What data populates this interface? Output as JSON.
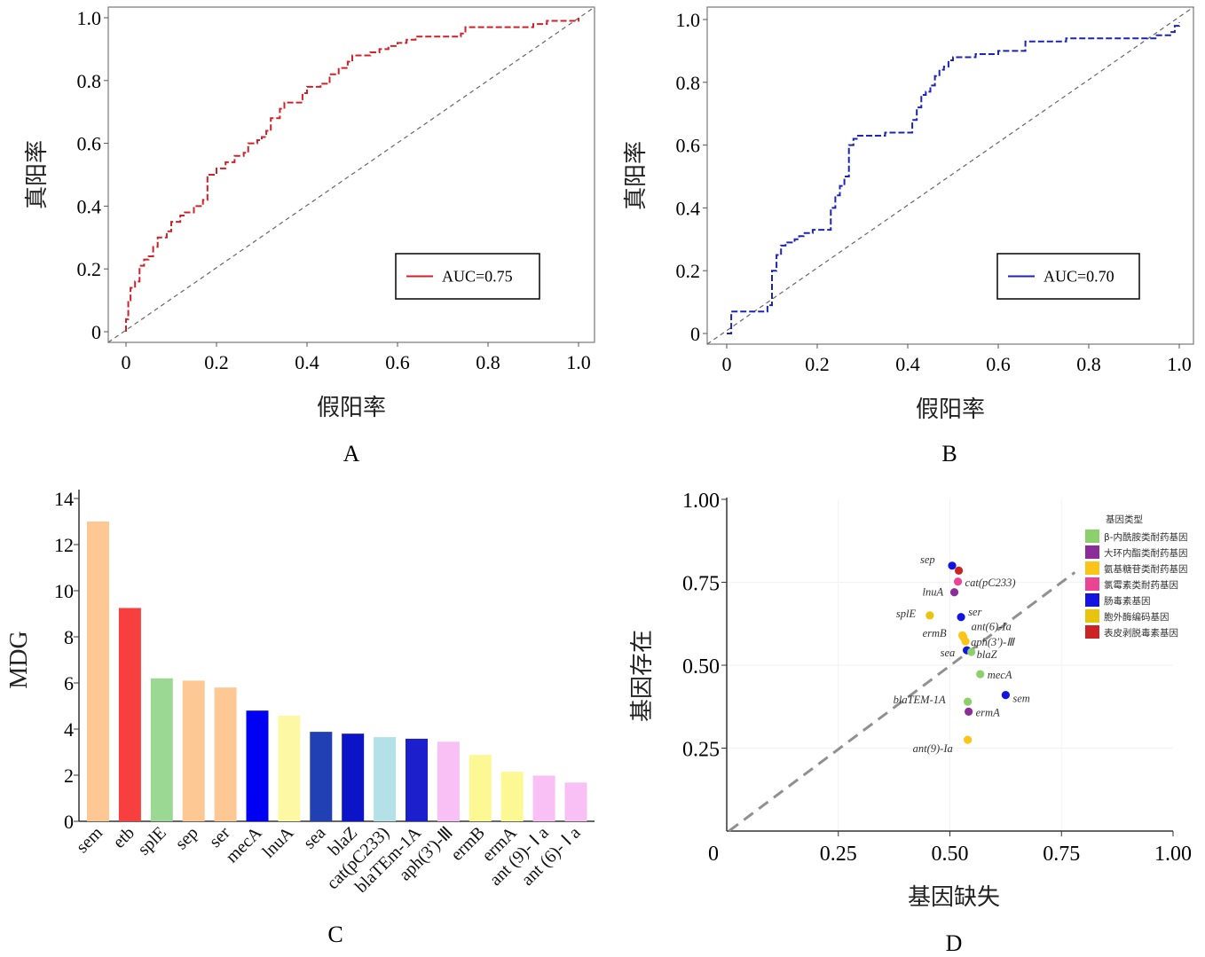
{
  "chart_data": [
    {
      "panel": "A",
      "type": "line",
      "xlabel": "假阳率",
      "ylabel": "真阳率",
      "xlim": [
        0,
        1
      ],
      "ylim": [
        0,
        1
      ],
      "xticks": [
        "0",
        "0.2",
        "0.4",
        "0.6",
        "0.8",
        "1.0"
      ],
      "yticks": [
        "0",
        "0.2",
        "0.4",
        "0.6",
        "0.8",
        "1.0"
      ],
      "legend": "AUC=0.75",
      "legend_position": "bottom-right",
      "color": "#d0202a",
      "reference_line": "diagonal",
      "x": [
        0,
        0,
        0.005,
        0.01,
        0.02,
        0.03,
        0.04,
        0.05,
        0.06,
        0.07,
        0.09,
        0.1,
        0.12,
        0.13,
        0.15,
        0.17,
        0.18,
        0.2,
        0.22,
        0.24,
        0.26,
        0.27,
        0.29,
        0.3,
        0.31,
        0.32,
        0.34,
        0.35,
        0.37,
        0.39,
        0.4,
        0.42,
        0.43,
        0.45,
        0.47,
        0.49,
        0.5,
        0.52,
        0.54,
        0.56,
        0.58,
        0.6,
        0.62,
        0.64,
        0.66,
        0.68,
        0.7,
        0.72,
        0.74,
        0.75,
        0.8,
        0.85,
        0.9,
        0.93,
        0.95,
        1.0
      ],
      "y": [
        0,
        0.04,
        0.1,
        0.14,
        0.16,
        0.21,
        0.23,
        0.24,
        0.27,
        0.3,
        0.32,
        0.35,
        0.37,
        0.38,
        0.4,
        0.42,
        0.5,
        0.52,
        0.54,
        0.56,
        0.57,
        0.6,
        0.61,
        0.62,
        0.64,
        0.68,
        0.71,
        0.73,
        0.73,
        0.76,
        0.78,
        0.78,
        0.79,
        0.82,
        0.84,
        0.86,
        0.88,
        0.88,
        0.89,
        0.9,
        0.91,
        0.92,
        0.93,
        0.94,
        0.94,
        0.94,
        0.94,
        0.94,
        0.95,
        0.97,
        0.97,
        0.97,
        0.98,
        0.99,
        0.99,
        1.0
      ]
    },
    {
      "panel": "B",
      "type": "line",
      "xlabel": "假阳率",
      "ylabel": "真阳率",
      "xlim": [
        0,
        1
      ],
      "ylim": [
        0,
        1
      ],
      "xticks": [
        "0",
        "0.2",
        "0.4",
        "0.6",
        "0.8",
        "1.0"
      ],
      "yticks": [
        "0",
        "0.2",
        "0.4",
        "0.6",
        "0.8",
        "1.0"
      ],
      "legend": "AUC=0.70",
      "legend_position": "bottom-right",
      "color": "#1c24b4",
      "reference_line": "diagonal",
      "x": [
        0,
        0.01,
        0.01,
        0.08,
        0.09,
        0.09,
        0.1,
        0.11,
        0.12,
        0.13,
        0.15,
        0.16,
        0.17,
        0.18,
        0.19,
        0.2,
        0.22,
        0.23,
        0.24,
        0.25,
        0.26,
        0.27,
        0.28,
        0.29,
        0.3,
        0.35,
        0.38,
        0.4,
        0.41,
        0.42,
        0.43,
        0.44,
        0.45,
        0.46,
        0.47,
        0.48,
        0.49,
        0.5,
        0.51,
        0.55,
        0.6,
        0.65,
        0.66,
        0.68,
        0.75,
        0.8,
        0.9,
        0.95,
        0.98,
        0.99,
        1.0
      ],
      "y": [
        0,
        0.04,
        0.07,
        0.07,
        0.07,
        0.09,
        0.2,
        0.25,
        0.28,
        0.29,
        0.3,
        0.31,
        0.32,
        0.32,
        0.33,
        0.33,
        0.33,
        0.4,
        0.44,
        0.47,
        0.5,
        0.6,
        0.62,
        0.63,
        0.63,
        0.64,
        0.64,
        0.64,
        0.68,
        0.72,
        0.76,
        0.77,
        0.79,
        0.82,
        0.84,
        0.85,
        0.87,
        0.88,
        0.88,
        0.89,
        0.9,
        0.9,
        0.93,
        0.93,
        0.94,
        0.94,
        0.94,
        0.95,
        0.96,
        0.98,
        0.99
      ]
    },
    {
      "panel": "C",
      "type": "bar",
      "ylabel": "MDG",
      "ylim": [
        0,
        14
      ],
      "yticks": [
        "0",
        "2",
        "4",
        "6",
        "8",
        "10",
        "12",
        "14"
      ],
      "categories": [
        "sem",
        "etb",
        "splE",
        "sep",
        "ser",
        "mecA",
        "lnuA",
        "sea",
        "blaZ",
        "cat(pC233)",
        "blaTEm-1A",
        "aph(3')-Ⅲ",
        "ermB",
        "ermA",
        "ant (9)- Ⅰ a",
        "ant (6)- Ⅰ a"
      ],
      "values": [
        13.0,
        9.25,
        6.2,
        6.1,
        5.8,
        4.8,
        4.58,
        3.88,
        3.8,
        3.65,
        3.58,
        3.45,
        2.88,
        2.15,
        1.98,
        1.68
      ],
      "colors": [
        "#fdc894",
        "#f83f3f",
        "#9bd894",
        "#fdc894",
        "#fdc894",
        "#0000f2",
        "#fcf8a4",
        "#2040b4",
        "#0c14c8",
        "#b4e0e8",
        "#1c20cc",
        "#f8c0f4",
        "#fcf894",
        "#fcf894",
        "#f8c0f4",
        "#f8c0f4"
      ]
    },
    {
      "panel": "D",
      "type": "scatter",
      "xlabel": "基因缺失",
      "ylabel": "基因存在",
      "xlim": [
        0,
        1
      ],
      "ylim": [
        0,
        1
      ],
      "xticks": [
        "0",
        "0.25",
        "0.50",
        "0.75",
        "1.00"
      ],
      "yticks": [
        "0.25",
        "0.50",
        "0.75",
        "1.00"
      ],
      "reference_line": "diagonal-dashed",
      "legend_title": "基因类型",
      "legend_position": "top-right",
      "legend": [
        {
          "label": "β-内酰胺类耐药基因",
          "color": "#8cd06c"
        },
        {
          "label": "大环内酯类耐药基因",
          "color": "#8c2c98"
        },
        {
          "label": "氨基糖苷类耐药基因",
          "color": "#fcc418"
        },
        {
          "label": "氯霉素类耐药基因",
          "color": "#ec4494"
        },
        {
          "label": "肠毒素基因",
          "color": "#1414e0"
        },
        {
          "label": "胞外酶编码基因",
          "color": "#e8c40c"
        },
        {
          "label": "表皮剥脱毒素基因",
          "color": "#cc2424"
        }
      ],
      "points": [
        {
          "label": "sep",
          "x": 0.505,
          "y": 0.8,
          "color": "#1414e0"
        },
        {
          "label": "",
          "x": 0.52,
          "y": 0.785,
          "color": "#cc2424"
        },
        {
          "label": "cat(pC233)",
          "x": 0.518,
          "y": 0.752,
          "color": "#ec4494"
        },
        {
          "label": "lnuA",
          "x": 0.51,
          "y": 0.72,
          "color": "#8c2c98"
        },
        {
          "label": "splE",
          "x": 0.455,
          "y": 0.65,
          "color": "#e8c40c"
        },
        {
          "label": "ser",
          "x": 0.525,
          "y": 0.645,
          "color": "#1414e0"
        },
        {
          "label": "ant(6)-Ia",
          "x": 0.528,
          "y": 0.59,
          "color": "#fcc418"
        },
        {
          "label": "ermB",
          "x": 0.53,
          "y": 0.585,
          "color": "#fcc418"
        },
        {
          "label": "aph(3')-Ⅲ",
          "x": 0.535,
          "y": 0.572,
          "color": "#fcc418"
        },
        {
          "label": "sea",
          "x": 0.538,
          "y": 0.545,
          "color": "#1414e0"
        },
        {
          "label": "blaZ",
          "x": 0.548,
          "y": 0.54,
          "color": "#8cd06c"
        },
        {
          "label": "mecA",
          "x": 0.568,
          "y": 0.473,
          "color": "#8cd06c"
        },
        {
          "label": "sem",
          "x": 0.625,
          "y": 0.41,
          "color": "#1414e0"
        },
        {
          "label": "blaTEM-1A",
          "x": 0.54,
          "y": 0.39,
          "color": "#8cd06c"
        },
        {
          "label": "ermA",
          "x": 0.542,
          "y": 0.36,
          "color": "#8c2c98"
        },
        {
          "label": "ant(9)-Ia",
          "x": 0.54,
          "y": 0.275,
          "color": "#fcc418"
        }
      ]
    }
  ]
}
